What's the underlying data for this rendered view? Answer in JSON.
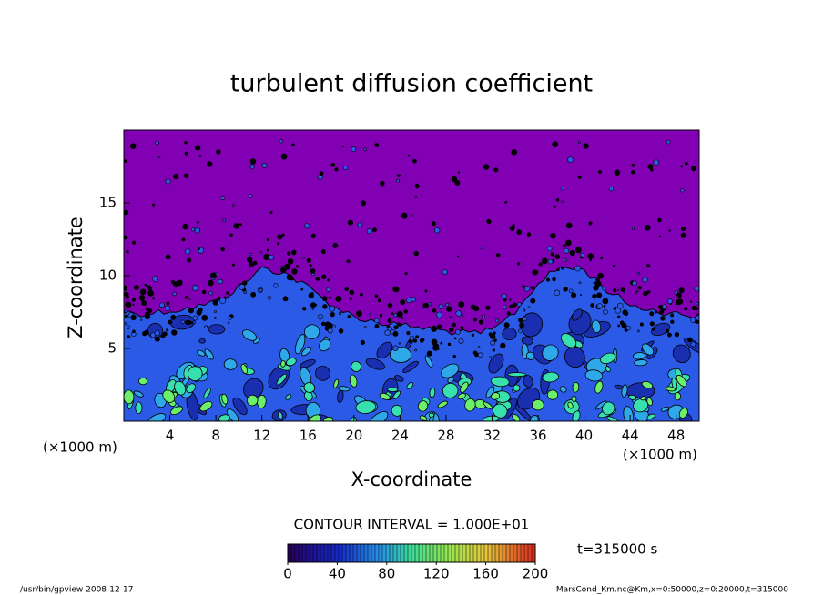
{
  "chart_data": {
    "type": "contour",
    "title": "turbulent diffusion coefficient",
    "x_label": "X-coordinate",
    "y_label": "Z-coordinate",
    "x_unit_left": "(×1000 m)",
    "x_unit_right": "(×1000 m)",
    "xlim": [
      0,
      50
    ],
    "xticks": [
      4,
      8,
      12,
      16,
      20,
      24,
      28,
      32,
      36,
      40,
      44,
      48
    ],
    "ylim": [
      0,
      20
    ],
    "yticks": [
      5,
      10,
      15
    ],
    "contour_interval_text": "CONTOUR INTERVAL = 1.000E+01",
    "colorbar": {
      "lim": [
        0,
        200
      ],
      "ticks": [
        0,
        40,
        80,
        120,
        160,
        200
      ]
    },
    "time_text": "t=315000 s",
    "footer_left": "/usr/bin/gpview  2008-12-17",
    "footer_right": "MarsCond_Km.nc@Km,x=0:50000,z=0:20000,t=315000"
  }
}
